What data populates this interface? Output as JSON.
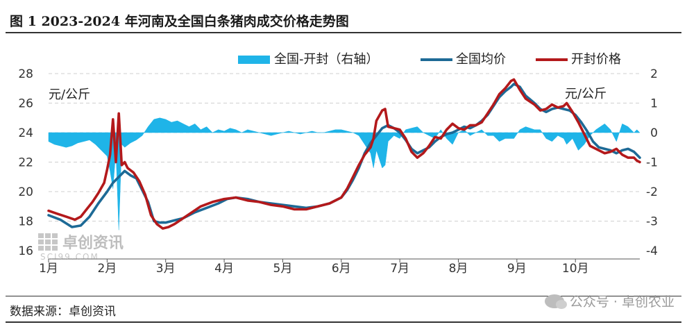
{
  "header": {
    "title": "图 1  2023-2024 年河南及全国白条猪肉成交价格走势图"
  },
  "footer": {
    "source": "数据来源：卓创资讯",
    "watermark": "公众号 · 卓创农业"
  },
  "logo": {
    "name": "卓创资讯",
    "url_text": "SCI99.COM"
  },
  "colors": {
    "spread": "#1fb4e8",
    "national": "#1d6a96",
    "kaifeng": "#b3191b"
  },
  "chart_data": {
    "type": "line",
    "title": "",
    "legend": [
      "全国-开封（右轴）",
      "全国均价",
      "开封价格"
    ],
    "legend_position": "top-right",
    "left_unit": "元/公斤",
    "right_unit": "元/公斤",
    "x_ticks": [
      "1月",
      "2月",
      "3月",
      "4月",
      "5月",
      "6月",
      "7月",
      "8月",
      "9月",
      "10月"
    ],
    "left_axis": {
      "min": 16,
      "max": 28,
      "step": 2,
      "ticks": [
        "16",
        "18",
        "20",
        "22",
        "24",
        "26",
        "28"
      ]
    },
    "right_axis": {
      "min": -4,
      "max": 2,
      "step": 1,
      "ticks": [
        "-4",
        "-3",
        "-2",
        "-1",
        "0",
        "1",
        "2"
      ]
    },
    "grid": true,
    "x_range": [
      0,
      10.1
    ],
    "series": [
      {
        "name": "全国均价",
        "axis": "left",
        "kind": "line",
        "points": [
          [
            0,
            18.4
          ],
          [
            0.2,
            18.1
          ],
          [
            0.4,
            17.6
          ],
          [
            0.55,
            17.7
          ],
          [
            0.7,
            18.3
          ],
          [
            0.85,
            19.2
          ],
          [
            1.0,
            20.0
          ],
          [
            1.1,
            20.6
          ],
          [
            1.2,
            21.0
          ],
          [
            1.3,
            21.4
          ],
          [
            1.4,
            21.1
          ],
          [
            1.5,
            20.9
          ],
          [
            1.6,
            20.1
          ],
          [
            1.7,
            19.3
          ],
          [
            1.8,
            18.0
          ],
          [
            1.9,
            17.9
          ],
          [
            2.0,
            17.9
          ],
          [
            2.1,
            18.0
          ],
          [
            2.3,
            18.2
          ],
          [
            2.5,
            18.6
          ],
          [
            2.7,
            18.9
          ],
          [
            2.9,
            19.2
          ],
          [
            3.05,
            19.5
          ],
          [
            3.2,
            19.6
          ],
          [
            3.4,
            19.5
          ],
          [
            3.6,
            19.3
          ],
          [
            3.8,
            19.2
          ],
          [
            4.0,
            19.1
          ],
          [
            4.2,
            19.0
          ],
          [
            4.4,
            18.9
          ],
          [
            4.6,
            19.0
          ],
          [
            4.8,
            19.2
          ],
          [
            5.0,
            19.6
          ],
          [
            5.1,
            20.1
          ],
          [
            5.2,
            20.8
          ],
          [
            5.3,
            21.6
          ],
          [
            5.4,
            22.6
          ],
          [
            5.5,
            23.3
          ],
          [
            5.6,
            23.8
          ],
          [
            5.7,
            24.3
          ],
          [
            5.8,
            24.5
          ],
          [
            5.9,
            24.3
          ],
          [
            6.0,
            24.0
          ],
          [
            6.1,
            23.5
          ],
          [
            6.2,
            22.9
          ],
          [
            6.3,
            22.6
          ],
          [
            6.4,
            22.8
          ],
          [
            6.5,
            23.0
          ],
          [
            6.6,
            23.4
          ],
          [
            6.7,
            23.7
          ],
          [
            6.8,
            23.9
          ],
          [
            6.9,
            24.0
          ],
          [
            7.0,
            24.2
          ],
          [
            7.1,
            24.4
          ],
          [
            7.2,
            24.3
          ],
          [
            7.3,
            24.5
          ],
          [
            7.4,
            24.8
          ],
          [
            7.5,
            25.2
          ],
          [
            7.6,
            25.8
          ],
          [
            7.7,
            26.4
          ],
          [
            7.8,
            26.8
          ],
          [
            7.9,
            27.1
          ],
          [
            7.95,
            27.3
          ],
          [
            8.05,
            27.1
          ],
          [
            8.15,
            26.5
          ],
          [
            8.3,
            26.0
          ],
          [
            8.4,
            25.6
          ],
          [
            8.5,
            25.4
          ],
          [
            8.6,
            25.6
          ],
          [
            8.7,
            25.7
          ],
          [
            8.8,
            25.6
          ],
          [
            8.9,
            25.5
          ],
          [
            9.0,
            25.2
          ],
          [
            9.1,
            24.7
          ],
          [
            9.2,
            24.1
          ],
          [
            9.3,
            23.4
          ],
          [
            9.4,
            23.0
          ],
          [
            9.5,
            22.9
          ],
          [
            9.6,
            22.8
          ],
          [
            9.7,
            22.6
          ],
          [
            9.8,
            22.8
          ],
          [
            9.9,
            22.9
          ],
          [
            10.0,
            22.7
          ],
          [
            10.05,
            22.5
          ],
          [
            10.1,
            22.3
          ]
        ]
      },
      {
        "name": "开封价格",
        "axis": "left",
        "kind": "line",
        "points": [
          [
            0,
            18.7
          ],
          [
            0.15,
            18.5
          ],
          [
            0.3,
            18.3
          ],
          [
            0.45,
            18.1
          ],
          [
            0.55,
            18.3
          ],
          [
            0.65,
            18.8
          ],
          [
            0.75,
            19.3
          ],
          [
            0.85,
            19.9
          ],
          [
            0.95,
            20.6
          ],
          [
            1.0,
            21.5
          ],
          [
            1.05,
            22.5
          ],
          [
            1.1,
            24.9
          ],
          [
            1.15,
            22.0
          ],
          [
            1.2,
            25.3
          ],
          [
            1.25,
            21.8
          ],
          [
            1.3,
            22.0
          ],
          [
            1.35,
            21.6
          ],
          [
            1.45,
            21.3
          ],
          [
            1.55,
            20.7
          ],
          [
            1.65,
            19.8
          ],
          [
            1.75,
            18.4
          ],
          [
            1.85,
            17.8
          ],
          [
            1.95,
            17.5
          ],
          [
            2.05,
            17.6
          ],
          [
            2.15,
            17.8
          ],
          [
            2.3,
            18.2
          ],
          [
            2.45,
            18.6
          ],
          [
            2.6,
            19.0
          ],
          [
            2.8,
            19.3
          ],
          [
            3.0,
            19.5
          ],
          [
            3.2,
            19.6
          ],
          [
            3.4,
            19.4
          ],
          [
            3.6,
            19.3
          ],
          [
            3.8,
            19.1
          ],
          [
            4.0,
            19.0
          ],
          [
            4.2,
            18.8
          ],
          [
            4.4,
            18.8
          ],
          [
            4.6,
            19.0
          ],
          [
            4.8,
            19.2
          ],
          [
            5.0,
            19.6
          ],
          [
            5.1,
            20.2
          ],
          [
            5.2,
            21.0
          ],
          [
            5.3,
            21.8
          ],
          [
            5.4,
            22.5
          ],
          [
            5.5,
            23.0
          ],
          [
            5.55,
            23.6
          ],
          [
            5.6,
            24.8
          ],
          [
            5.7,
            25.5
          ],
          [
            5.75,
            25.6
          ],
          [
            5.8,
            24.4
          ],
          [
            5.9,
            24.3
          ],
          [
            6.0,
            24.2
          ],
          [
            6.1,
            23.6
          ],
          [
            6.2,
            22.7
          ],
          [
            6.3,
            22.3
          ],
          [
            6.4,
            22.6
          ],
          [
            6.5,
            23.1
          ],
          [
            6.6,
            23.7
          ],
          [
            6.7,
            23.6
          ],
          [
            6.8,
            24.2
          ],
          [
            6.9,
            24.6
          ],
          [
            7.0,
            24.3
          ],
          [
            7.1,
            24.2
          ],
          [
            7.2,
            24.5
          ],
          [
            7.3,
            24.5
          ],
          [
            7.4,
            24.7
          ],
          [
            7.5,
            25.3
          ],
          [
            7.6,
            25.9
          ],
          [
            7.7,
            26.6
          ],
          [
            7.8,
            27.0
          ],
          [
            7.9,
            27.5
          ],
          [
            7.95,
            27.6
          ],
          [
            8.05,
            26.9
          ],
          [
            8.15,
            26.3
          ],
          [
            8.3,
            25.9
          ],
          [
            8.4,
            25.5
          ],
          [
            8.5,
            25.6
          ],
          [
            8.6,
            25.9
          ],
          [
            8.7,
            25.7
          ],
          [
            8.8,
            25.8
          ],
          [
            8.85,
            26.0
          ],
          [
            8.95,
            25.4
          ],
          [
            9.05,
            24.7
          ],
          [
            9.15,
            23.9
          ],
          [
            9.25,
            23.1
          ],
          [
            9.35,
            22.9
          ],
          [
            9.5,
            22.6
          ],
          [
            9.6,
            22.7
          ],
          [
            9.7,
            22.9
          ],
          [
            9.8,
            22.5
          ],
          [
            9.9,
            22.3
          ],
          [
            10.0,
            22.3
          ],
          [
            10.05,
            22.1
          ],
          [
            10.1,
            22.0
          ]
        ]
      },
      {
        "name": "全国-开封（右轴）",
        "axis": "right",
        "kind": "area",
        "points": [
          [
            0,
            -0.3
          ],
          [
            0.1,
            -0.4
          ],
          [
            0.2,
            -0.45
          ],
          [
            0.3,
            -0.5
          ],
          [
            0.4,
            -0.45
          ],
          [
            0.5,
            -0.35
          ],
          [
            0.6,
            -0.3
          ],
          [
            0.7,
            -0.25
          ],
          [
            0.8,
            -0.4
          ],
          [
            0.9,
            -0.6
          ],
          [
            1.0,
            -0.8
          ],
          [
            1.05,
            -1.3
          ],
          [
            1.1,
            -1.9
          ],
          [
            1.15,
            -0.6
          ],
          [
            1.2,
            -3.3
          ],
          [
            1.25,
            -0.4
          ],
          [
            1.3,
            -0.5
          ],
          [
            1.4,
            -0.35
          ],
          [
            1.5,
            -0.25
          ],
          [
            1.6,
            -0.1
          ],
          [
            1.7,
            0.2
          ],
          [
            1.8,
            0.45
          ],
          [
            1.9,
            0.5
          ],
          [
            2.0,
            0.45
          ],
          [
            2.1,
            0.35
          ],
          [
            2.2,
            0.4
          ],
          [
            2.3,
            0.3
          ],
          [
            2.4,
            0.2
          ],
          [
            2.5,
            0.3
          ],
          [
            2.6,
            0.1
          ],
          [
            2.7,
            0.2
          ],
          [
            2.8,
            0.0
          ],
          [
            2.9,
            0.1
          ],
          [
            3.0,
            0.05
          ],
          [
            3.1,
            0.15
          ],
          [
            3.2,
            0.1
          ],
          [
            3.3,
            0.0
          ],
          [
            3.4,
            0.1
          ],
          [
            3.5,
            0.05
          ],
          [
            3.6,
            0.0
          ],
          [
            3.7,
            -0.05
          ],
          [
            3.8,
            -0.1
          ],
          [
            3.9,
            -0.05
          ],
          [
            4.0,
            0.0
          ],
          [
            4.1,
            0.05
          ],
          [
            4.2,
            0.0
          ],
          [
            4.3,
            -0.05
          ],
          [
            4.4,
            0.0
          ],
          [
            4.5,
            0.05
          ],
          [
            4.6,
            0.0
          ],
          [
            4.7,
            0.0
          ],
          [
            4.8,
            0.05
          ],
          [
            4.9,
            0.1
          ],
          [
            5.0,
            0.1
          ],
          [
            5.1,
            0.05
          ],
          [
            5.2,
            0.0
          ],
          [
            5.3,
            -0.1
          ],
          [
            5.4,
            -0.4
          ],
          [
            5.5,
            -0.7
          ],
          [
            5.55,
            -1.2
          ],
          [
            5.6,
            -0.6
          ],
          [
            5.7,
            -1.2
          ],
          [
            5.75,
            -1.1
          ],
          [
            5.8,
            -0.3
          ],
          [
            5.9,
            -0.1
          ],
          [
            6.0,
            -0.2
          ],
          [
            6.1,
            0.1
          ],
          [
            6.2,
            0.15
          ],
          [
            6.3,
            0.2
          ],
          [
            6.4,
            0.0
          ],
          [
            6.5,
            -0.1
          ],
          [
            6.6,
            -0.2
          ],
          [
            6.7,
            0.1
          ],
          [
            6.8,
            -0.2
          ],
          [
            6.9,
            -0.4
          ],
          [
            7.0,
            0.0
          ],
          [
            7.1,
            0.1
          ],
          [
            7.2,
            -0.1
          ],
          [
            7.3,
            0.0
          ],
          [
            7.4,
            0.1
          ],
          [
            7.5,
            -0.1
          ],
          [
            7.6,
            -0.1
          ],
          [
            7.7,
            -0.3
          ],
          [
            7.8,
            -0.2
          ],
          [
            7.9,
            -0.2
          ],
          [
            7.95,
            -0.2
          ],
          [
            8.05,
            0.1
          ],
          [
            8.15,
            0.2
          ],
          [
            8.3,
            0.1
          ],
          [
            8.4,
            0.1
          ],
          [
            8.5,
            -0.2
          ],
          [
            8.6,
            -0.3
          ],
          [
            8.7,
            -0.1
          ],
          [
            8.8,
            -0.2
          ],
          [
            8.85,
            -0.4
          ],
          [
            8.95,
            -0.2
          ],
          [
            9.05,
            -0.6
          ],
          [
            9.15,
            -0.4
          ],
          [
            9.25,
            -0.1
          ],
          [
            9.35,
            0.1
          ],
          [
            9.5,
            0.3
          ],
          [
            9.6,
            0.1
          ],
          [
            9.7,
            -0.3
          ],
          [
            9.8,
            0.3
          ],
          [
            9.9,
            0.2
          ],
          [
            10.0,
            0.0
          ],
          [
            10.05,
            0.1
          ],
          [
            10.1,
            0.0
          ]
        ]
      }
    ]
  }
}
